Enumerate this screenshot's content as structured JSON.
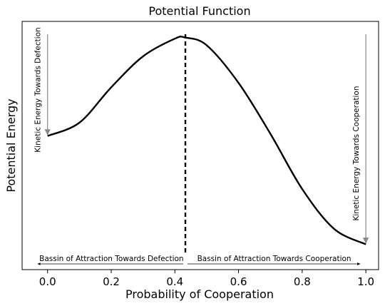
{
  "chart_data": {
    "type": "line",
    "title": "Potential Function",
    "xlabel": "Probability of Cooperation",
    "ylabel": "Potential Energy",
    "xlim": [
      -0.08,
      1.04
    ],
    "ylim": [
      0,
      1
    ],
    "xticks": [
      "0.0",
      "0.2",
      "0.4",
      "0.6",
      "0.8",
      "1.0"
    ],
    "xtick_values": [
      0,
      0.2,
      0.4,
      0.6,
      0.8,
      1.0
    ],
    "grid": false,
    "curve": {
      "x": [
        0.0,
        0.1,
        0.2,
        0.3,
        0.4,
        0.433,
        0.5,
        0.6,
        0.7,
        0.8,
        0.9,
        1.0
      ],
      "y": [
        0.54,
        0.6,
        0.76,
        0.9,
        0.98,
        0.985,
        0.95,
        0.78,
        0.55,
        0.3,
        0.12,
        0.05
      ]
    },
    "threshold": 0.433,
    "annotations": {
      "left_arrow_label": "Kinetic Energy Towards Defection",
      "right_arrow_label": "Kinetic Energy Towards Cooperation",
      "left_basin": "Bassin of Attraction Towards Defection",
      "right_basin": "Bassin of Attraction Towards Cooperation"
    },
    "colors": {
      "curve": "#000000",
      "kinetic_arrow": "#888888"
    }
  }
}
